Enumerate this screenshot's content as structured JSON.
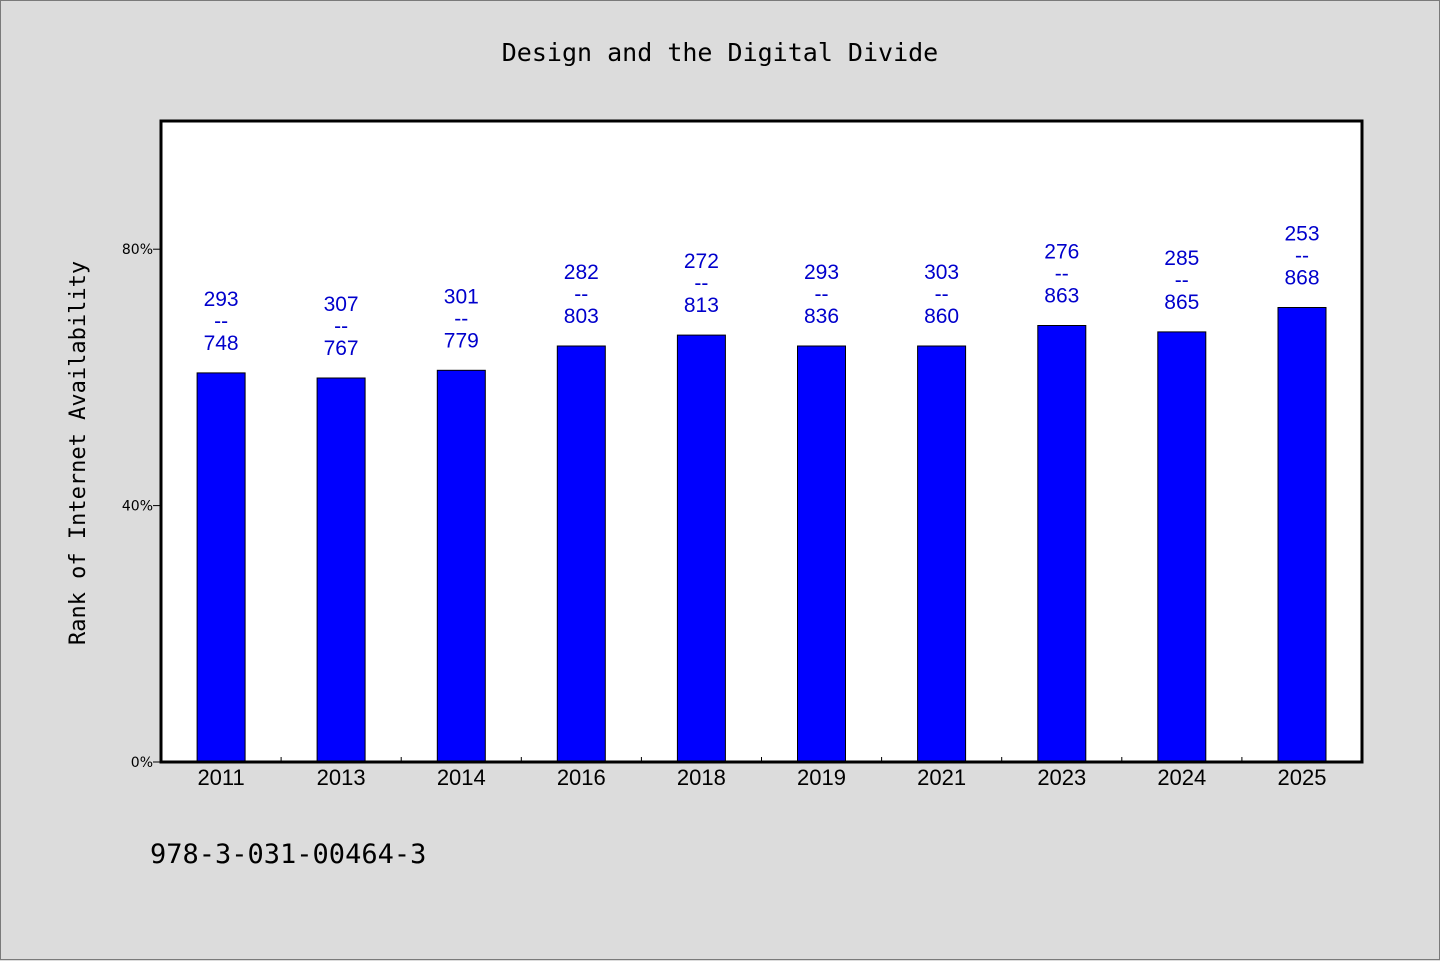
{
  "chart_data": {
    "type": "bar",
    "title": "Design and the Digital Divide",
    "xlabel": "",
    "ylabel": "Rank of Internet Availability",
    "categories": [
      "2011",
      "2013",
      "2014",
      "2016",
      "2018",
      "2019",
      "2021",
      "2023",
      "2024",
      "2025"
    ],
    "values": [
      60.7,
      59.9,
      61.1,
      64.9,
      66.6,
      64.9,
      64.9,
      68.1,
      67.1,
      70.9
    ],
    "data_labels": [
      {
        "rank": "293",
        "sep": "--",
        "total": "748"
      },
      {
        "rank": "307",
        "sep": "--",
        "total": "767"
      },
      {
        "rank": "301",
        "sep": "--",
        "total": "779"
      },
      {
        "rank": "282",
        "sep": "--",
        "total": "803"
      },
      {
        "rank": "272",
        "sep": "--",
        "total": "813"
      },
      {
        "rank": "293",
        "sep": "--",
        "total": "836"
      },
      {
        "rank": "303",
        "sep": "--",
        "total": "860"
      },
      {
        "rank": "276",
        "sep": "--",
        "total": "863"
      },
      {
        "rank": "285",
        "sep": "--",
        "total": "865"
      },
      {
        "rank": "253",
        "sep": "--",
        "total": "868"
      }
    ],
    "ylim": [
      0,
      100
    ],
    "yticks": [
      0,
      40,
      80
    ],
    "ytick_labels": [
      "0%",
      "40%",
      "80%"
    ],
    "grid": false,
    "legend": "none",
    "colors": {
      "bar": "#0000ff",
      "data_label": "#0000cc",
      "background": "#dcdcdc",
      "plot_area": "#ffffff"
    }
  },
  "footer": {
    "isbn": "978-3-031-00464-3"
  }
}
